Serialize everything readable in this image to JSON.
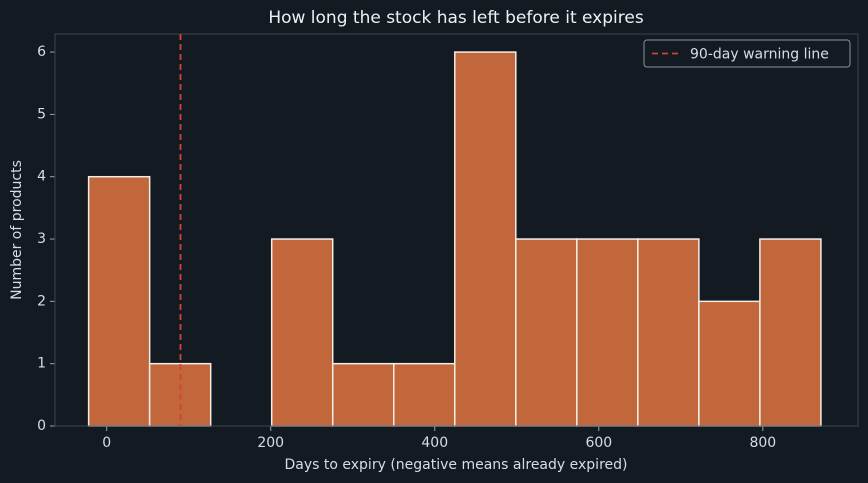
{
  "chart_data": {
    "type": "histogram",
    "title": "How long the stock has left before it expires",
    "x_label": "Days to expiry (negative means already expired)",
    "y_label": "Number of products",
    "bins": [
      -22,
      52.4,
      126.8,
      201.2,
      275.6,
      350,
      424.4,
      498.8,
      573.2,
      647.6,
      722,
      796.4,
      870.8
    ],
    "values": [
      4,
      1,
      0,
      3,
      1,
      1,
      6,
      3,
      3,
      3,
      2,
      3
    ],
    "color": "#c2663c",
    "edge_color": "#f2ede8",
    "xlim": [
      -63,
      916
    ],
    "xticks": [
      0,
      200,
      400,
      600,
      800
    ],
    "ylim": [
      0,
      6.29
    ],
    "yticks": [
      0,
      1,
      2,
      3,
      4,
      5,
      6
    ],
    "reference_line": {
      "value": 90,
      "label": "90-day warning line",
      "color": "#d0453a"
    },
    "legend_position": "upper right"
  }
}
